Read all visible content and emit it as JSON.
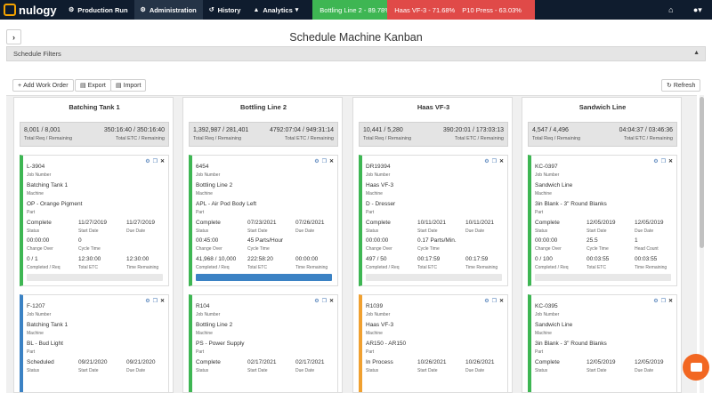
{
  "brand": {
    "name": "nulogy"
  },
  "nav": {
    "production_run": "Production Run",
    "administration": "Administration",
    "history": "History",
    "analytics": "Analytics"
  },
  "status_lines": [
    {
      "label": "Bottling Line 2 - 89.78%",
      "color": "#3eb653"
    },
    {
      "label": "Haas VF-3 - 71.68%",
      "color": "#e04a48"
    },
    {
      "label": "P10 Press - 63.03%",
      "color": "#e04a48"
    }
  ],
  "page": {
    "title": "Schedule Machine Kanban",
    "filters_label": "Schedule Filters"
  },
  "toolbar": {
    "add_work_order": "Add Work Order",
    "export": "Export",
    "import": "Import",
    "refresh": "Refresh"
  },
  "labels": {
    "total_req_remaining": "Total Req / Remaining",
    "total_etc_remaining": "Total ETC / Remaining",
    "job_number": "Job Number",
    "machine": "Machine",
    "part": "Part",
    "status": "Status",
    "start_date": "Start Date",
    "due_date": "Due Date",
    "change_over": "Change Over",
    "cycle_time": "Cycle Time",
    "head_count": "Head Count",
    "completed_req": "Completed / Req",
    "total_etc": "Total ETC",
    "time_remaining": "Time Remaining"
  },
  "columns": [
    {
      "title": "Batching Tank 1",
      "req_remaining": "8,001 / 8,001",
      "etc_remaining": "350:16:40 / 350:16:40",
      "cards": [
        {
          "job": "L-3904",
          "machine": "Batching Tank 1",
          "part": "OP - Orange Pigment",
          "status": "Complete",
          "start": "11/27/2019",
          "due": "11/27/2019",
          "change_over": "00:00:00",
          "cycle": "0",
          "completed": "0 / 1",
          "total_etc": "12:30:00",
          "remaining": "12:30:00",
          "progress": 0,
          "color": "#3eb653"
        },
        {
          "job": "F-1207",
          "machine": "Batching Tank 1",
          "part": "BL - Bud Light",
          "status": "Scheduled",
          "start": "09/21/2020",
          "due": "09/21/2020",
          "color": "#3b82c4"
        }
      ]
    },
    {
      "title": "Bottling Line 2",
      "req_remaining": "1,392,987 / 281,401",
      "etc_remaining": "4792:07:04 / 949:31:14",
      "cards": [
        {
          "job": "6454",
          "machine": "Bottling Line 2",
          "part": "APL - Air Pod Body Left",
          "status": "Complete",
          "start": "07/23/2021",
          "due": "07/26/2021",
          "change_over": "00:45:00",
          "cycle": "45 Parts/Hour",
          "completed": "41,968 / 10,000",
          "total_etc": "222:58:20",
          "remaining": "00:00:00",
          "progress": 1,
          "color": "#3eb653"
        },
        {
          "job": "R104",
          "machine": "Bottling Line 2",
          "part": "PS - Power Supply",
          "status": "Complete",
          "start": "02/17/2021",
          "due": "02/17/2021",
          "color": "#3eb653"
        }
      ]
    },
    {
      "title": "Haas VF-3",
      "req_remaining": "10,441 / 5,280",
      "etc_remaining": "390:20:01 / 173:03:13",
      "cards": [
        {
          "job": "DR19394",
          "machine": "Haas VF-3",
          "part": "D - Dresser",
          "status": "Complete",
          "start": "10/11/2021",
          "due": "10/11/2021",
          "change_over": "00:00:00",
          "cycle": "0.17 Parts/Min.",
          "completed": "497 / 50",
          "total_etc": "00:17:59",
          "remaining": "00:17:59",
          "progress": 0,
          "color": "#3eb653"
        },
        {
          "job": "R1039",
          "machine": "Haas VF-3",
          "part": "AR150 - AR150",
          "status": "In Process",
          "start": "10/26/2021",
          "due": "10/26/2021",
          "color": "#f0a030"
        }
      ]
    },
    {
      "title": "Sandwich Line",
      "req_remaining": "4,547 / 4,496",
      "etc_remaining": "04:04:37 / 03:46:36",
      "cards": [
        {
          "job": "KC-0397",
          "machine": "Sandwich Line",
          "part": "3in Blank - 3\" Round Blanks",
          "status": "Complete",
          "start": "12/05/2019",
          "due": "12/05/2019",
          "change_over": "00:00:00",
          "cycle": "25.5",
          "head_count": "1",
          "completed": "0 / 100",
          "total_etc": "00:03:55",
          "remaining": "00:03:55",
          "progress": 0,
          "color": "#3eb653"
        },
        {
          "job": "KC-0395",
          "machine": "Sandwich Line",
          "part": "3in Blank - 3\" Round Blanks",
          "status": "Complete",
          "start": "12/05/2019",
          "due": "12/05/2019",
          "color": "#3eb653"
        }
      ]
    }
  ]
}
